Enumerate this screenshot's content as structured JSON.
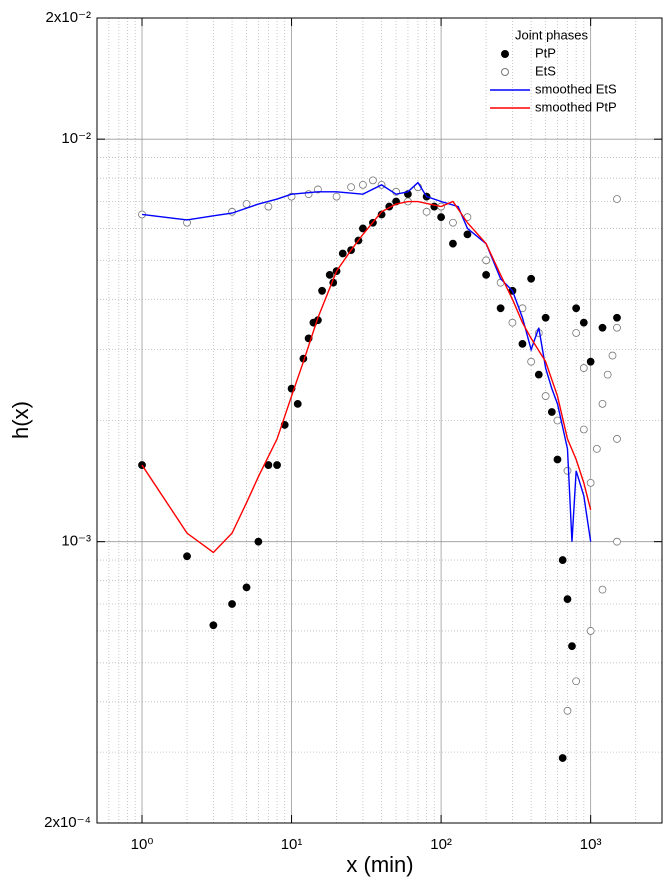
{
  "chart_data": {
    "type": "scatter",
    "xlabel": "x (min)",
    "ylabel": "h(x)",
    "log_x": true,
    "log_y": true,
    "grid": true,
    "legend": "upper right",
    "legend_title": "Joint phases",
    "xlim": [
      0.5,
      3000
    ],
    "ylim": [
      0.0002,
      0.02
    ],
    "xticks": [
      {
        "value": 1,
        "label": "10⁰"
      },
      {
        "value": 10,
        "label": "10¹"
      },
      {
        "value": 100,
        "label": "10²"
      },
      {
        "value": 1000,
        "label": "10³"
      }
    ],
    "yticks": [
      {
        "value": 0.0002,
        "label": "2x10⁻⁴"
      },
      {
        "value": 0.001,
        "label": "10⁻³"
      },
      {
        "value": 0.01,
        "label": "10⁻²"
      },
      {
        "value": 0.02,
        "label": "2x10⁻²"
      }
    ],
    "series": [
      {
        "name": "PtP",
        "style": "marker",
        "color": "#000000",
        "fill": "#000000",
        "x": [
          1,
          2,
          3,
          4,
          5,
          6,
          7,
          8,
          9,
          10,
          11,
          12,
          13,
          14,
          15,
          16,
          18,
          19,
          20,
          22,
          25,
          28,
          30,
          35,
          40,
          45,
          50,
          60,
          70,
          80,
          90,
          100,
          120,
          150,
          200,
          250,
          300,
          350,
          400,
          450,
          500,
          550,
          600,
          650,
          700,
          750,
          800,
          900,
          1000,
          1200,
          1500,
          650
        ],
        "values": [
          0.00155,
          0.00092,
          0.00062,
          0.0007,
          0.00077,
          0.001,
          0.00155,
          0.00155,
          0.00195,
          0.0024,
          0.0022,
          0.00285,
          0.0032,
          0.0035,
          0.00355,
          0.0042,
          0.0046,
          0.0044,
          0.0047,
          0.0052,
          0.0053,
          0.0056,
          0.006,
          0.0062,
          0.0065,
          0.0068,
          0.007,
          0.0073,
          0.0076,
          0.0072,
          0.0068,
          0.0064,
          0.0055,
          0.0058,
          0.0046,
          0.0038,
          0.0042,
          0.0031,
          0.0045,
          0.0026,
          0.0036,
          0.0021,
          0.0016,
          0.0009,
          0.00072,
          0.00055,
          0.0038,
          0.0035,
          0.0028,
          0.0034,
          0.0036,
          0.00029
        ]
      },
      {
        "name": "EtS",
        "style": "marker",
        "color": "#777777",
        "fill": "#ffffff",
        "x": [
          1,
          2,
          4,
          5,
          7,
          10,
          13,
          15,
          20,
          25,
          30,
          35,
          40,
          50,
          60,
          70,
          80,
          100,
          120,
          150,
          200,
          250,
          300,
          350,
          400,
          450,
          500,
          600,
          700,
          800,
          900,
          1000,
          1100,
          1200,
          1300,
          1500,
          1500,
          1500,
          1200,
          1000,
          800,
          700,
          1500,
          900,
          1400
        ],
        "values": [
          0.0065,
          0.0062,
          0.0066,
          0.0069,
          0.0068,
          0.0072,
          0.0073,
          0.0075,
          0.0072,
          0.0076,
          0.0077,
          0.0079,
          0.0077,
          0.0074,
          0.007,
          0.0076,
          0.0066,
          0.0068,
          0.0062,
          0.0064,
          0.005,
          0.0044,
          0.0035,
          0.0038,
          0.0028,
          0.0033,
          0.0023,
          0.002,
          0.0015,
          0.0033,
          0.0019,
          0.0014,
          0.0017,
          0.0022,
          0.0026,
          0.0034,
          0.0018,
          0.001,
          0.00076,
          0.0006,
          0.00045,
          0.00038,
          0.0071,
          0.0027,
          0.0029
        ]
      },
      {
        "name": "smoothed EtS",
        "style": "line",
        "color": "#0000ff",
        "x": [
          1,
          2,
          3,
          4,
          6,
          8,
          10,
          15,
          20,
          30,
          40,
          50,
          60,
          70,
          80,
          100,
          130,
          150,
          200,
          250,
          300,
          350,
          400,
          450,
          500,
          550,
          600,
          700,
          750,
          800,
          900,
          1000
        ],
        "values": [
          0.0065,
          0.0063,
          0.00645,
          0.00655,
          0.0069,
          0.0071,
          0.0073,
          0.0074,
          0.0074,
          0.0073,
          0.0077,
          0.0073,
          0.0074,
          0.0078,
          0.0072,
          0.007,
          0.0068,
          0.006,
          0.0055,
          0.0045,
          0.0042,
          0.0036,
          0.003,
          0.0034,
          0.0027,
          0.0024,
          0.0022,
          0.0017,
          0.001,
          0.0015,
          0.0013,
          0.001
        ]
      },
      {
        "name": "smoothed PtP",
        "style": "line",
        "color": "#ff0000",
        "x": [
          1,
          2,
          3,
          4,
          5,
          6,
          8,
          10,
          12,
          15,
          20,
          25,
          30,
          40,
          50,
          60,
          70,
          100,
          120,
          150,
          200,
          250,
          300,
          350,
          400,
          500,
          600,
          700,
          800,
          900,
          1000
        ],
        "values": [
          0.00155,
          0.00105,
          0.00094,
          0.00105,
          0.00125,
          0.00145,
          0.0018,
          0.0023,
          0.0028,
          0.0036,
          0.0047,
          0.0053,
          0.0058,
          0.0066,
          0.0069,
          0.007,
          0.007,
          0.0068,
          0.007,
          0.0062,
          0.0055,
          0.0046,
          0.004,
          0.0035,
          0.0032,
          0.0028,
          0.0023,
          0.0018,
          0.0016,
          0.0014,
          0.0012
        ]
      }
    ]
  }
}
